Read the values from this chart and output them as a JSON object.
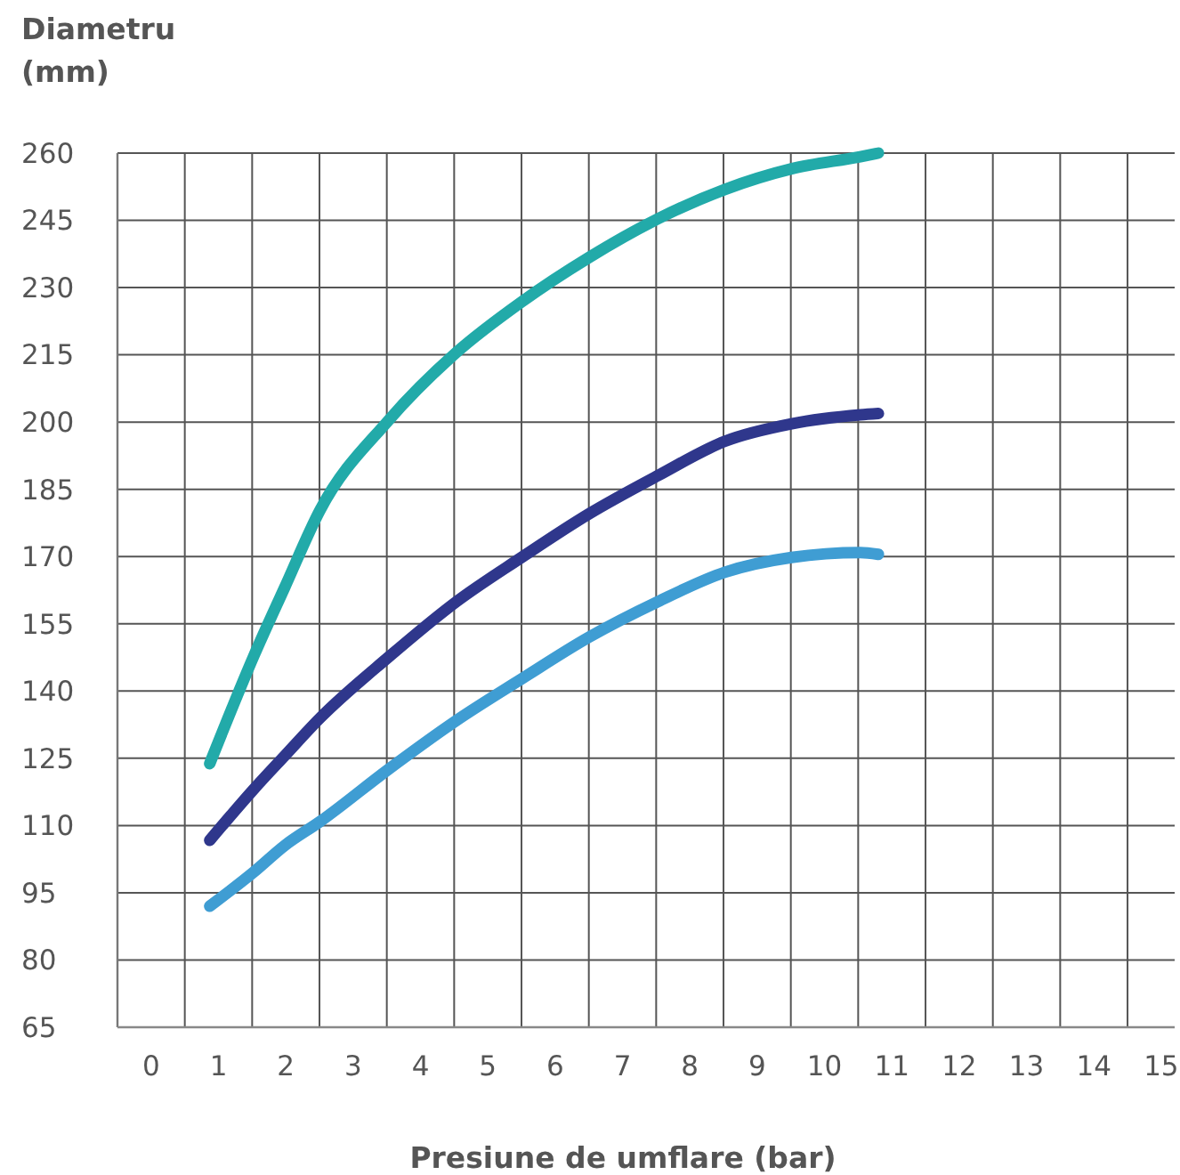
{
  "chart_data": {
    "type": "line",
    "xlabel": "Presiune de umflare (bar)",
    "ylabel": "Diametru (mm)",
    "xlim": [
      -0.5,
      15.2
    ],
    "xticks": [
      0,
      1,
      2,
      3,
      4,
      5,
      6,
      7,
      8,
      9,
      10,
      11,
      12,
      13,
      14,
      15,
      {
        "value": 0.5,
        "label": null
      },
      {
        "value": 1.5,
        "label": null
      },
      {
        "value": 2.5,
        "label": null
      },
      {
        "value": 3.5,
        "label": null
      },
      {
        "value": 4.5,
        "label": null
      },
      {
        "value": 5.5,
        "label": null
      },
      {
        "value": 6.5,
        "label": null
      },
      {
        "value": 7.5,
        "label": null
      },
      {
        "value": 8.5,
        "label": null
      },
      {
        "value": 9.5,
        "label": null
      },
      {
        "value": 10.5,
        "label": null
      },
      {
        "value": 11.5,
        "label": null
      },
      {
        "value": 12.5,
        "label": null
      },
      {
        "value": 13.5,
        "label": null
      },
      {
        "value": 14.5,
        "label": null
      }
    ],
    "ylim": [
      65,
      260
    ],
    "yticks": [
      65,
      80,
      95,
      110,
      125,
      140,
      155,
      170,
      185,
      200,
      215,
      230,
      245,
      260
    ],
    "grid": true,
    "marker": "none",
    "line_style": "solid",
    "x": [
      0.87,
      1.53,
      1.98,
      2.51,
      3.52,
      4.53,
      5.5,
      6.5,
      7.52,
      8.52,
      9.51,
      10.53,
      10.8
    ],
    "series": [
      {
        "color": "#22aaa9",
        "values": [
          123.8,
          148,
          163,
          180.4,
          200.3,
          215.5,
          226.8,
          236.7,
          245.3,
          251.9,
          256.5,
          259.2,
          260
        ]
      },
      {
        "color": "#2f378c",
        "values": [
          106.7,
          118.2,
          125.5,
          134,
          147.5,
          159.9,
          169.8,
          179.5,
          188,
          195.7,
          199.6,
          201.6,
          201.9
        ]
      },
      {
        "color": "#3f9dd3",
        "values": [
          92,
          99.7,
          105.5,
          110.9,
          122.5,
          133.4,
          142.7,
          152,
          159.9,
          166.5,
          169.8,
          170.9,
          170.5
        ]
      }
    ]
  }
}
